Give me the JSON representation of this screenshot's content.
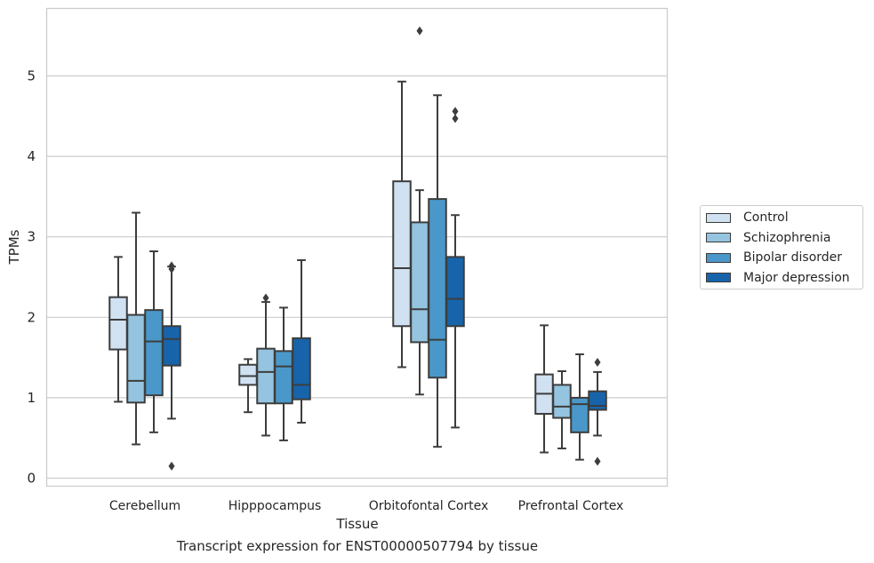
{
  "chart_data": {
    "type": "box",
    "title": "Transcript expression for ENST00000507794 by tissue",
    "xlabel": "Tissue",
    "ylabel": "TPMs",
    "ylim": [
      -0.1,
      5.85
    ],
    "yticks": [
      0,
      1,
      2,
      3,
      4,
      5
    ],
    "grid": "horizontal",
    "legend_position": "right",
    "categories": [
      "Cerebellum",
      "Hipppocampus",
      "Orbitofontal Cortex",
      "Prefrontal Cortex"
    ],
    "series": [
      {
        "name": "Control",
        "color": "#d0e1f2",
        "boxes": [
          {
            "whisker_low": 0.95,
            "q1": 1.6,
            "median": 1.97,
            "q3": 2.25,
            "whisker_high": 2.75,
            "outliers": []
          },
          {
            "whisker_low": 0.82,
            "q1": 1.16,
            "median": 1.27,
            "q3": 1.41,
            "whisker_high": 1.48,
            "outliers": []
          },
          {
            "whisker_low": 1.38,
            "q1": 1.89,
            "median": 2.61,
            "q3": 3.69,
            "whisker_high": 4.93,
            "outliers": []
          },
          {
            "whisker_low": 0.32,
            "q1": 0.8,
            "median": 1.05,
            "q3": 1.29,
            "whisker_high": 1.9,
            "outliers": []
          }
        ]
      },
      {
        "name": "Schizophrenia",
        "color": "#94c4df",
        "boxes": [
          {
            "whisker_low": 0.42,
            "q1": 0.94,
            "median": 1.21,
            "q3": 2.03,
            "whisker_high": 3.3,
            "outliers": []
          },
          {
            "whisker_low": 0.53,
            "q1": 0.93,
            "median": 1.32,
            "q3": 1.61,
            "whisker_high": 2.19,
            "outliers": [
              2.24
            ]
          },
          {
            "whisker_low": 1.04,
            "q1": 1.69,
            "median": 2.1,
            "q3": 3.18,
            "whisker_high": 3.58,
            "outliers": [
              5.56
            ]
          },
          {
            "whisker_low": 0.37,
            "q1": 0.75,
            "median": 0.89,
            "q3": 1.16,
            "whisker_high": 1.33,
            "outliers": []
          }
        ]
      },
      {
        "name": "Bipolar disorder",
        "color": "#4a98c9",
        "boxes": [
          {
            "whisker_low": 0.57,
            "q1": 1.03,
            "median": 1.7,
            "q3": 2.09,
            "whisker_high": 2.82,
            "outliers": []
          },
          {
            "whisker_low": 0.47,
            "q1": 0.93,
            "median": 1.39,
            "q3": 1.58,
            "whisker_high": 2.12,
            "outliers": []
          },
          {
            "whisker_low": 0.39,
            "q1": 1.25,
            "median": 1.72,
            "q3": 3.47,
            "whisker_high": 4.76,
            "outliers": []
          },
          {
            "whisker_low": 0.23,
            "q1": 0.57,
            "median": 0.92,
            "q3": 1.0,
            "whisker_high": 1.54,
            "outliers": []
          }
        ]
      },
      {
        "name": "Major depression",
        "color": "#1764ab",
        "boxes": [
          {
            "whisker_low": 0.74,
            "q1": 1.4,
            "median": 1.73,
            "q3": 1.89,
            "whisker_high": 2.63,
            "outliers": [
              0.15,
              2.6,
              2.64
            ]
          },
          {
            "whisker_low": 0.69,
            "q1": 0.98,
            "median": 1.16,
            "q3": 1.74,
            "whisker_high": 2.71,
            "outliers": []
          },
          {
            "whisker_low": 0.63,
            "q1": 1.89,
            "median": 2.23,
            "q3": 2.75,
            "whisker_high": 3.27,
            "outliers": [
              4.47,
              4.56
            ]
          },
          {
            "whisker_low": 0.53,
            "q1": 0.85,
            "median": 0.9,
            "q3": 1.08,
            "whisker_high": 1.32,
            "outliers": [
              0.21,
              1.44
            ]
          }
        ]
      }
    ]
  }
}
